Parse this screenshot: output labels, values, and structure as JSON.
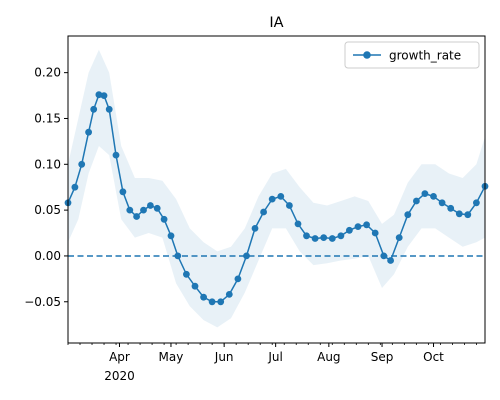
{
  "chart_data": {
    "type": "line",
    "title": "IA",
    "xlabel": "",
    "ylabel": "",
    "xlim": [
      "2020-03-02",
      "2020-10-31"
    ],
    "ylim": [
      -0.095,
      0.24
    ],
    "x_ticks": [
      {
        "date": "2020-04-01",
        "label": "Apr",
        "sublabel": "2020"
      },
      {
        "date": "2020-05-01",
        "label": "May",
        "sublabel": ""
      },
      {
        "date": "2020-06-01",
        "label": "Jun",
        "sublabel": ""
      },
      {
        "date": "2020-07-01",
        "label": "Jul",
        "sublabel": ""
      },
      {
        "date": "2020-08-01",
        "label": "Aug",
        "sublabel": ""
      },
      {
        "date": "2020-09-01",
        "label": "Sep",
        "sublabel": ""
      },
      {
        "date": "2020-10-01",
        "label": "Oct",
        "sublabel": ""
      }
    ],
    "y_ticks": [
      {
        "value": 0.2,
        "label": "0.20"
      },
      {
        "value": 0.15,
        "label": "0.15"
      },
      {
        "value": 0.1,
        "label": "0.10"
      },
      {
        "value": 0.05,
        "label": "0.05"
      },
      {
        "value": 0.0,
        "label": "0.00"
      },
      {
        "value": -0.05,
        "label": "−0.05"
      }
    ],
    "grid": false,
    "legend": {
      "position": "top-right",
      "entries": [
        "growth_rate"
      ]
    },
    "reference_line": {
      "y": 0.0,
      "style": "dashed"
    },
    "colors": {
      "series": "#1f77b4",
      "band": "#1f77b4"
    },
    "series": [
      {
        "name": "growth_rate",
        "marker": "circle",
        "x": [
          "2020-03-02",
          "2020-03-06",
          "2020-03-10",
          "2020-03-14",
          "2020-03-17",
          "2020-03-20",
          "2020-03-23",
          "2020-03-26",
          "2020-03-30",
          "2020-04-03",
          "2020-04-07",
          "2020-04-11",
          "2020-04-15",
          "2020-04-19",
          "2020-04-23",
          "2020-04-27",
          "2020-05-01",
          "2020-05-05",
          "2020-05-10",
          "2020-05-15",
          "2020-05-20",
          "2020-05-25",
          "2020-05-30",
          "2020-06-04",
          "2020-06-09",
          "2020-06-14",
          "2020-06-19",
          "2020-06-24",
          "2020-06-29",
          "2020-07-04",
          "2020-07-09",
          "2020-07-14",
          "2020-07-19",
          "2020-07-24",
          "2020-07-29",
          "2020-08-03",
          "2020-08-08",
          "2020-08-13",
          "2020-08-18",
          "2020-08-23",
          "2020-08-28",
          "2020-09-02",
          "2020-09-06",
          "2020-09-11",
          "2020-09-16",
          "2020-09-21",
          "2020-09-26",
          "2020-10-01",
          "2020-10-06",
          "2020-10-11",
          "2020-10-16",
          "2020-10-21",
          "2020-10-26",
          "2020-10-31"
        ],
        "y": [
          0.058,
          0.075,
          0.1,
          0.135,
          0.16,
          0.176,
          0.175,
          0.16,
          0.11,
          0.07,
          0.05,
          0.043,
          0.05,
          0.055,
          0.052,
          0.04,
          0.022,
          0.0,
          -0.02,
          -0.033,
          -0.045,
          -0.05,
          -0.05,
          -0.042,
          -0.025,
          0.0,
          0.03,
          0.048,
          0.062,
          0.065,
          0.055,
          0.035,
          0.022,
          0.019,
          0.02,
          0.019,
          0.022,
          0.028,
          0.032,
          0.034,
          0.025,
          0.0,
          -0.005,
          0.02,
          0.045,
          0.06,
          0.068,
          0.065,
          0.058,
          0.052,
          0.046,
          0.045,
          0.058,
          0.076
        ]
      }
    ],
    "band": {
      "name": "uncertainty",
      "x": [
        "2020-03-02",
        "2020-03-08",
        "2020-03-14",
        "2020-03-20",
        "2020-03-26",
        "2020-04-02",
        "2020-04-10",
        "2020-04-18",
        "2020-04-26",
        "2020-05-04",
        "2020-05-12",
        "2020-05-20",
        "2020-05-28",
        "2020-06-05",
        "2020-06-13",
        "2020-06-21",
        "2020-06-29",
        "2020-07-07",
        "2020-07-15",
        "2020-07-23",
        "2020-07-31",
        "2020-08-08",
        "2020-08-16",
        "2020-08-24",
        "2020-09-01",
        "2020-09-08",
        "2020-09-16",
        "2020-09-24",
        "2020-10-02",
        "2020-10-10",
        "2020-10-18",
        "2020-10-26",
        "2020-10-31"
      ],
      "upper": [
        0.1,
        0.15,
        0.2,
        0.225,
        0.2,
        0.12,
        0.085,
        0.085,
        0.082,
        0.062,
        0.03,
        0.015,
        0.005,
        0.01,
        0.03,
        0.065,
        0.09,
        0.095,
        0.075,
        0.058,
        0.055,
        0.06,
        0.065,
        0.06,
        0.035,
        0.045,
        0.08,
        0.1,
        0.1,
        0.09,
        0.085,
        0.1,
        0.13
      ],
      "lower": [
        0.015,
        0.04,
        0.09,
        0.12,
        0.11,
        0.04,
        0.02,
        0.025,
        0.02,
        -0.03,
        -0.055,
        -0.07,
        -0.078,
        -0.068,
        -0.04,
        -0.005,
        0.03,
        0.03,
        0.005,
        -0.01,
        -0.008,
        -0.005,
        -0.003,
        0.0,
        -0.035,
        -0.02,
        0.01,
        0.03,
        0.03,
        0.02,
        0.01,
        0.015,
        0.02
      ]
    }
  }
}
